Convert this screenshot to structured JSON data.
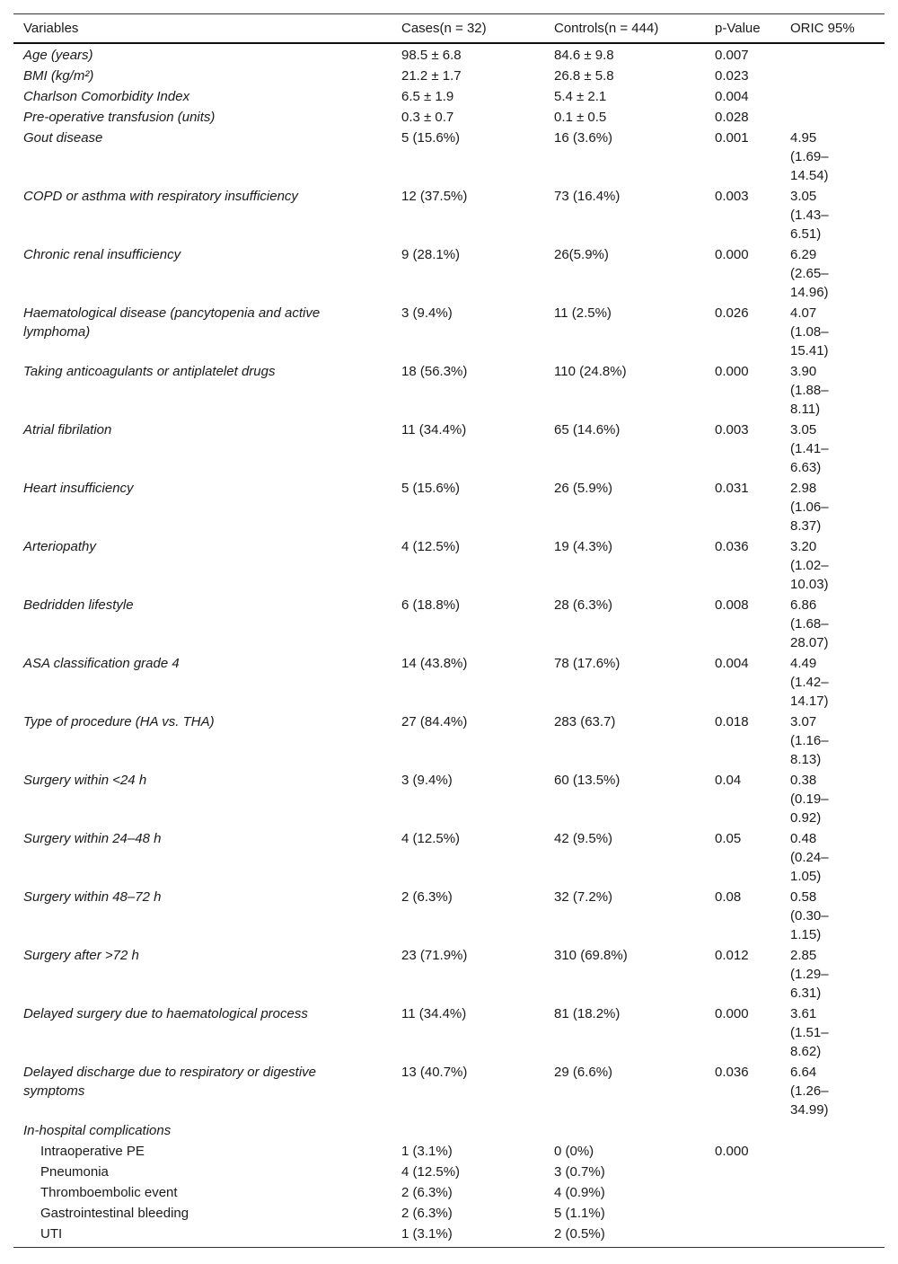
{
  "table": {
    "headers": [
      "Variables",
      "Cases(n = 32)",
      "Controls(n = 444)",
      "p-Value",
      "ORIC 95%"
    ],
    "rows": [
      {
        "variable": "Age (years)",
        "cases": "98.5 ± 6.8",
        "controls": "84.6 ± 9.8",
        "p": "0.007"
      },
      {
        "variable": "BMI (kg/m²)",
        "cases": "21.2 ± 1.7",
        "controls": "26.8 ± 5.8",
        "p": "0.023"
      },
      {
        "variable": "Charlson Comorbidity Index",
        "cases": "6.5 ± 1.9",
        "controls": "5.4 ± 2.1",
        "p": "0.004"
      },
      {
        "variable": "Pre-operative transfusion (units)",
        "cases": "0.3 ± 0.7",
        "controls": "0.1 ± 0.5",
        "p": "0.028"
      },
      {
        "variable": "Gout disease",
        "cases": "5 (15.6%)",
        "controls": "16 (3.6%)",
        "p": "0.001",
        "oric": "4.95 (1.69–14.54)"
      },
      {
        "variable": "COPD or asthma with respiratory insufficiency",
        "cases": "12 (37.5%)",
        "controls": "73 (16.4%)",
        "p": "0.003",
        "oric": "3.05 (1.43–6.51)"
      },
      {
        "variable": "Chronic renal insufficiency",
        "cases": "9 (28.1%)",
        "controls": "26(5.9%)",
        "p": "0.000",
        "oric": "6.29 (2.65–14.96)"
      },
      {
        "variable": "Haematological disease (pancytopenia and active lymphoma)",
        "cases": "3 (9.4%)",
        "controls": "11 (2.5%)",
        "p": "0.026",
        "oric": "4.07 (1.08–15.41)"
      },
      {
        "variable": "Taking anticoagulants or antiplatelet drugs",
        "cases": "18 (56.3%)",
        "controls": "110 (24.8%)",
        "p": "0.000",
        "oric": "3.90 (1.88–8.11)"
      },
      {
        "variable": "Atrial fibrilation",
        "cases": "11 (34.4%)",
        "controls": "65 (14.6%)",
        "p": "0.003",
        "oric": "3.05 (1.41–6.63)"
      },
      {
        "variable": "Heart insufficiency",
        "cases": "5 (15.6%)",
        "controls": "26 (5.9%)",
        "p": "0.031",
        "oric": "2.98 (1.06–8.37)"
      },
      {
        "variable": "Arteriopathy",
        "cases": "4 (12.5%)",
        "controls": "19 (4.3%)",
        "p": "0.036",
        "oric": "3.20 (1.02–10.03)"
      },
      {
        "variable": "Bedridden lifestyle",
        "cases": "6 (18.8%)",
        "controls": "28 (6.3%)",
        "p": "0.008",
        "oric": "6.86 (1.68–28.07)"
      },
      {
        "variable": "ASA classification grade 4",
        "cases": "14 (43.8%)",
        "controls": "78 (17.6%)",
        "p": "0.004",
        "oric": "4.49 (1.42–14.17)"
      },
      {
        "variable": "Type of procedure (HA vs. THA)",
        "cases": "27 (84.4%)",
        "controls": "283 (63.7)",
        "p": "0.018",
        "oric": "3.07 (1.16–8.13)"
      },
      {
        "variable": "Surgery within <24 h",
        "cases": "3 (9.4%)",
        "controls": "60 (13.5%)",
        "p": "0.04",
        "oric": "0.38 (0.19–0.92)"
      },
      {
        "variable": "Surgery within 24–48 h",
        "cases": "4 (12.5%)",
        "controls": "42 (9.5%)",
        "p": "0.05",
        "oric": "0.48 (0.24–1.05)"
      },
      {
        "variable": "Surgery within 48–72 h",
        "cases": "2 (6.3%)",
        "controls": "32 (7.2%)",
        "p": "0.08",
        "oric": "0.58 (0.30–1.15)"
      },
      {
        "variable": "Surgery after >72 h",
        "cases": "23 (71.9%)",
        "controls": "310 (69.8%)",
        "p": "0.012",
        "oric": "2.85 (1.29–6.31)"
      },
      {
        "variable": "Delayed surgery due to haematological process",
        "cases": "11 (34.4%)",
        "controls": "81 (18.2%)",
        "p": "0.000",
        "oric": "3.61 (1.51–8.62)"
      },
      {
        "variable": "Delayed discharge due to respiratory or digestive symptoms",
        "cases": "13 (40.7%)",
        "controls": "29 (6.6%)",
        "p": "0.036",
        "oric": "6.64 (1.26–34.99)"
      }
    ],
    "complications": {
      "label": "In-hospital complications",
      "rows": [
        {
          "variable": "Intraoperative PE",
          "cases": "1 (3.1%)",
          "controls": "0 (0%)",
          "p": "0.000"
        },
        {
          "variable": "Pneumonia",
          "cases": "4 (12.5%)",
          "controls": "3 (0.7%)"
        },
        {
          "variable": "Thromboembolic event",
          "cases": "2 (6.3%)",
          "controls": "4 (0.9%)"
        },
        {
          "variable": "Gastrointestinal bleeding",
          "cases": "2 (6.3%)",
          "controls": "5 (1.1%)"
        },
        {
          "variable": "UTI",
          "cases": "1 (3.1%)",
          "controls": "2 (0.5%)"
        }
      ]
    }
  }
}
